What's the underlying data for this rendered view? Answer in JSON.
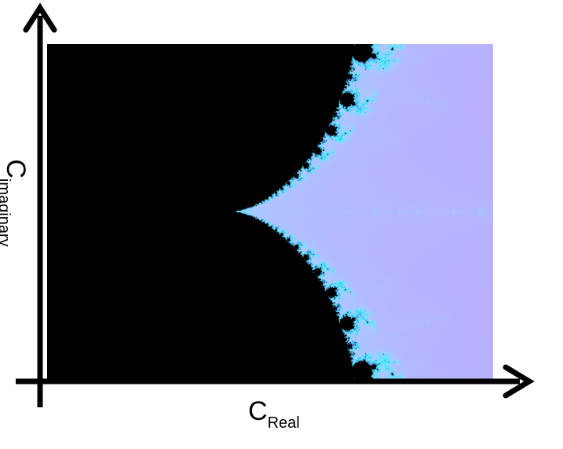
{
  "x_axis": {
    "label_main": "C",
    "label_sub": "Real"
  },
  "y_axis": {
    "label_main": "C",
    "label_sub": "imaginary"
  },
  "colors": {
    "axis": "#000000",
    "set_interior": "#000000",
    "outer_pink": "#ee88ee",
    "mid_lilac": "#bbaaff",
    "cyan": "#55eeff",
    "deep_blue": "#3366cc",
    "magenta_edge": "#cc44dd"
  }
}
